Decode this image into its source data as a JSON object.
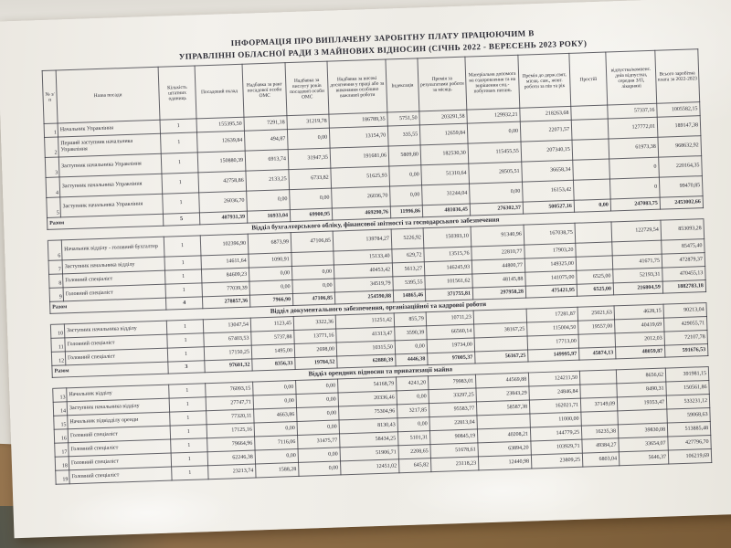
{
  "title_line1": "ІНФОРМАЦІЯ ПРО ВИПЛАЧЕНУ ЗАРОБІТНУ ПЛАТУ ПРАЦЮЮЧИМ В",
  "title_line2": "УПРАВЛІННІ ОБЛАСНОЇ РАДИ З МАЙНОВИХ ВІДНОСИН (СІЧНЬ 2022 - ВЕРЕСЕНЬ 2023 РОКУ)",
  "colors": {
    "desk": "#8e6e4a",
    "paper": "#f1efe9",
    "ink": "#2c2c35"
  },
  "table": {
    "columns": [
      "№ з/п",
      "Назва посади",
      "Кількість штатних одиниць",
      "Посадовий оклад",
      "Надбавка за ранг посадової особи ОМС",
      "Надбавка за вислугу років посадової особи ОМС",
      "Надбавка за високі досягнення у праці або за виконання особливо важливої роботи",
      "Індексація",
      "Премія за результатами роботи за місяць",
      "Матеріальна допомога на оздоровлення та на вирішення соц.-побутових питань",
      "Премія до держ.свят, місяц. сам., жовт. роботи за пів та рік",
      "Простій",
      "відпустка/компенс. днів відпустки, середня З/П, лікарняні",
      "Всього заробітна плата за 2022-2023"
    ],
    "total_label": "Разом",
    "groups": [
      {
        "section": "",
        "rows": [
          {
            "num": "1",
            "title": "Начальник Управління",
            "units": "1",
            "values": [
              "155395,50",
              "7291,18",
              "31219,78",
              "186789,35",
              "5751,50",
              "203291,58",
              "129932,21",
              "218263,68",
              "",
              "57337,16",
              "1005582,15"
            ]
          },
          {
            "num": "2",
            "title": "Перший заступник начальника Управління",
            "units": "1",
            "values": [
              "12639,84",
              "494,87",
              "0,00",
              "13154,70",
              "335,55",
              "12659,84",
              "0,00",
              "22071,57",
              "",
              "127772,01",
              "189147,38"
            ]
          },
          {
            "num": "3",
            "title": "Заступник начальника Управління",
            "units": "1",
            "values": [
              "150880,39",
              "6913,74",
              "31947,35",
              "191681,06",
              "5809,80",
              "182530,30",
              "115455,55",
              "207340,15",
              "",
              "61973,38",
              "968632,92"
            ]
          },
          {
            "num": "4",
            "title": "Заступник начальника Управління",
            "units": "1",
            "values": [
              "42758,86",
              "2133,25",
              "6733,82",
              "51625,93",
              "0,00",
              "51310,64",
              "28505,51",
              "36658,34",
              "",
              "0",
              "220164,35"
            ]
          },
          {
            "num": "5",
            "title": "Заступник начальника Управління",
            "units": "1",
            "values": [
              "26036,70",
              "0,00",
              "0,00",
              "26036,70",
              "0,00",
              "31244,04",
              "0,00",
              "16153,42",
              "",
              "0",
              "99470,85"
            ]
          }
        ],
        "total": {
          "units": "5",
          "values": [
            "407931,39",
            "16933,04",
            "69900,95",
            "469290,76",
            "11996,86",
            "481036,45",
            "276302,37",
            "500527,16",
            "0,00",
            "247083,75",
            "2453002,66"
          ]
        }
      },
      {
        "section": "Відділ бухгалтерського обліку, фінансової звітності та господарського забезпечення",
        "rows": [
          {
            "num": "6",
            "title": "Начальник відділу - головний бухгалтер",
            "units": "1",
            "values": [
              "102396,90",
              "6873,99",
              "47106,85",
              "139784,27",
              "5226,92",
              "150393,10",
              "91340,96",
              "167038,75",
              "",
              "122729,54",
              "853093,28"
            ]
          },
          {
            "num": "7",
            "title": "Заступник начальника відділу",
            "units": "1",
            "values": [
              "14611,64",
              "1090,91",
              "",
              "15133,40",
              "629,72",
              "13515,76",
              "22810,77",
              "17903,20",
              "",
              "",
              "85475,40"
            ]
          },
          {
            "num": "8",
            "title": "Головний спеціаліст",
            "units": "1",
            "values": [
              "84609,23",
              "0,00",
              "0,00",
              "40453,42",
              "5613,27",
              "146245,93",
              "44800,77",
              "149325,00",
              "",
              "41671,75",
              "472879,37"
            ]
          },
          {
            "num": "9",
            "title": "Головний спеціаліст",
            "units": "1",
            "values": [
              "77039,39",
              "0,00",
              "0,00",
              "34519,79",
              "5395,55",
              "101561,62",
              "48145,88",
              "141075,00",
              "6525,00",
              "52193,31",
              "470455,13"
            ]
          }
        ],
        "total": {
          "units": "4",
          "values": [
            "278857,36",
            "7966,90",
            "47106,85",
            "254590,88",
            "14865,46",
            "371755,81",
            "297958,28",
            "475421,95",
            "6525,00",
            "216804,59",
            "1882783,18"
          ]
        }
      },
      {
        "section": "Відділ документального забезпечення, організаційної та кадрової роботи",
        "rows": [
          {
            "num": "10",
            "title": "Заступник начальника відділу",
            "units": "1",
            "values": [
              "13047,54",
              "1123,45",
              "3322,36",
              "11251,42",
              "855,79",
              "10711,23",
              "",
              "17281,87",
              "25021,63",
              "4628,15",
              "90213,04"
            ]
          },
          {
            "num": "11",
            "title": "Головний спеціаліст",
            "units": "1",
            "values": [
              "67403,53",
              "5737,88",
              "13771,16",
              "41313,47",
              "3590,39",
              "66560,14",
              "38167,25",
              "115004,50",
              "19557,00",
              "40419,69",
              "429055,71"
            ]
          },
          {
            "num": "12",
            "title": "Головний спеціаліст",
            "units": "1",
            "values": [
              "17150,25",
              "1495,00",
              "2698,00",
              "10315,50",
              "0,00",
              "19734,00",
              "",
              "17713,00",
              "",
              "2012,03",
              "72107,78"
            ]
          }
        ],
        "total": {
          "units": "3",
          "values": [
            "97601,32",
            "8356,33",
            "19784,52",
            "62880,39",
            "4446,38",
            "97005,37",
            "56167,25",
            "149995,97",
            "45874,13",
            "48059,87",
            "591676,53"
          ]
        }
      },
      {
        "section": "Відділ орендних відносин та приватизації майна",
        "rows": [
          {
            "num": "13",
            "title": "Начальник відділу",
            "units": "1",
            "values": [
              "76093,15",
              "0,00",
              "0,00",
              "54168,79",
              "4241,20",
              "79983,01",
              "44569,88",
              "124211,50",
              "",
              "8656,62",
              "391981,15"
            ]
          },
          {
            "num": "14",
            "title": "Заступник начальника відділу",
            "units": "1",
            "values": [
              "27747,71",
              "0,00",
              "0,00",
              "20336,46",
              "0,00",
              "33297,25",
              "23843,29",
              "24846,84",
              "",
              "8490,31",
              "150561,86"
            ]
          },
          {
            "num": "15",
            "title": "Начальник підвідділу оренди",
            "units": "1",
            "values": [
              "77320,11",
              "4663,86",
              "0,00",
              "75304,96",
              "3217,85",
              "95583,77",
              "58587,38",
              "162021,71",
              "37149,09",
              "19353,47",
              "533231,12"
            ]
          },
          {
            "num": "16",
            "title": "Головний спеціаліст",
            "units": "1",
            "values": [
              "17125,16",
              "0,00",
              "0,00",
              "8130,43",
              "0,00",
              "22813,04",
              "",
              "11000,00",
              "",
              "",
              "59068,63"
            ]
          },
          {
            "num": "17",
            "title": "Головний спеціаліст",
            "units": "1",
            "values": [
              "79664,96",
              "7116,06",
              "31475,77",
              "58434,25",
              "5101,31",
              "90845,19",
              "40208,21",
              "144779,25",
              "16235,38",
              "39830,08",
              "513885,48"
            ]
          },
          {
            "num": "18",
            "title": "Головний спеціаліст",
            "units": "1",
            "values": [
              "62246,38",
              "0,00",
              "0,00",
              "51906,71",
              "2208,65",
              "51678,61",
              "63894,20",
              "103929,71",
              "49384,27",
              "33654,07",
              "427796,70"
            ]
          },
          {
            "num": "19",
            "title": "Головний спеціаліст",
            "units": "1",
            "values": [
              "23213,74",
              "1588,28",
              "0,00",
              "12451,02",
              "645,82",
              "23118,23",
              "12440,98",
              "23809,25",
              "6803,04",
              "5646,37",
              "106219,69"
            ]
          }
        ],
        "total": null
      }
    ]
  }
}
